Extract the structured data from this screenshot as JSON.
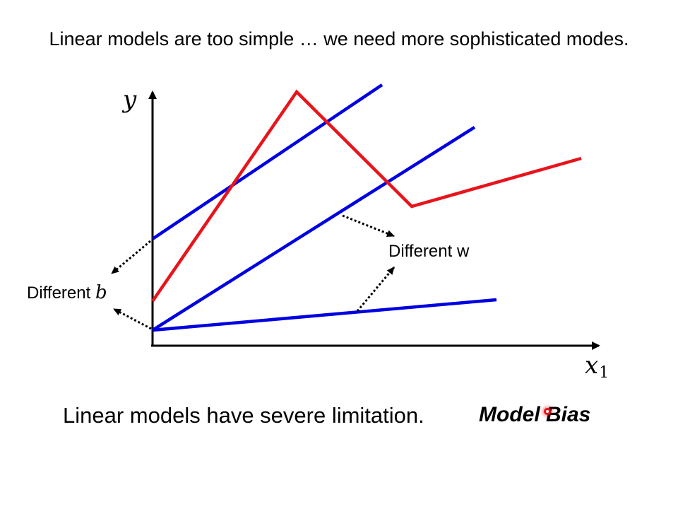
{
  "slide": {
    "title": "Linear models are too simple … we need more sophisticated modes.",
    "caption": "Linear models have severe limitation.",
    "keyword": "Model Bias"
  },
  "diagram": {
    "y_axis_label": "y",
    "x_axis_label": "x",
    "x_axis_subscript": "1",
    "annotation_b_prefix": "Different ",
    "annotation_b_var": "b",
    "annotation_w_prefix": "Different ",
    "annotation_w_var": "w",
    "colors": {
      "linear_lines": "#0000e0",
      "target_curve": "#e8141b",
      "axes": "#000000",
      "pointer": "#e8141b"
    }
  }
}
